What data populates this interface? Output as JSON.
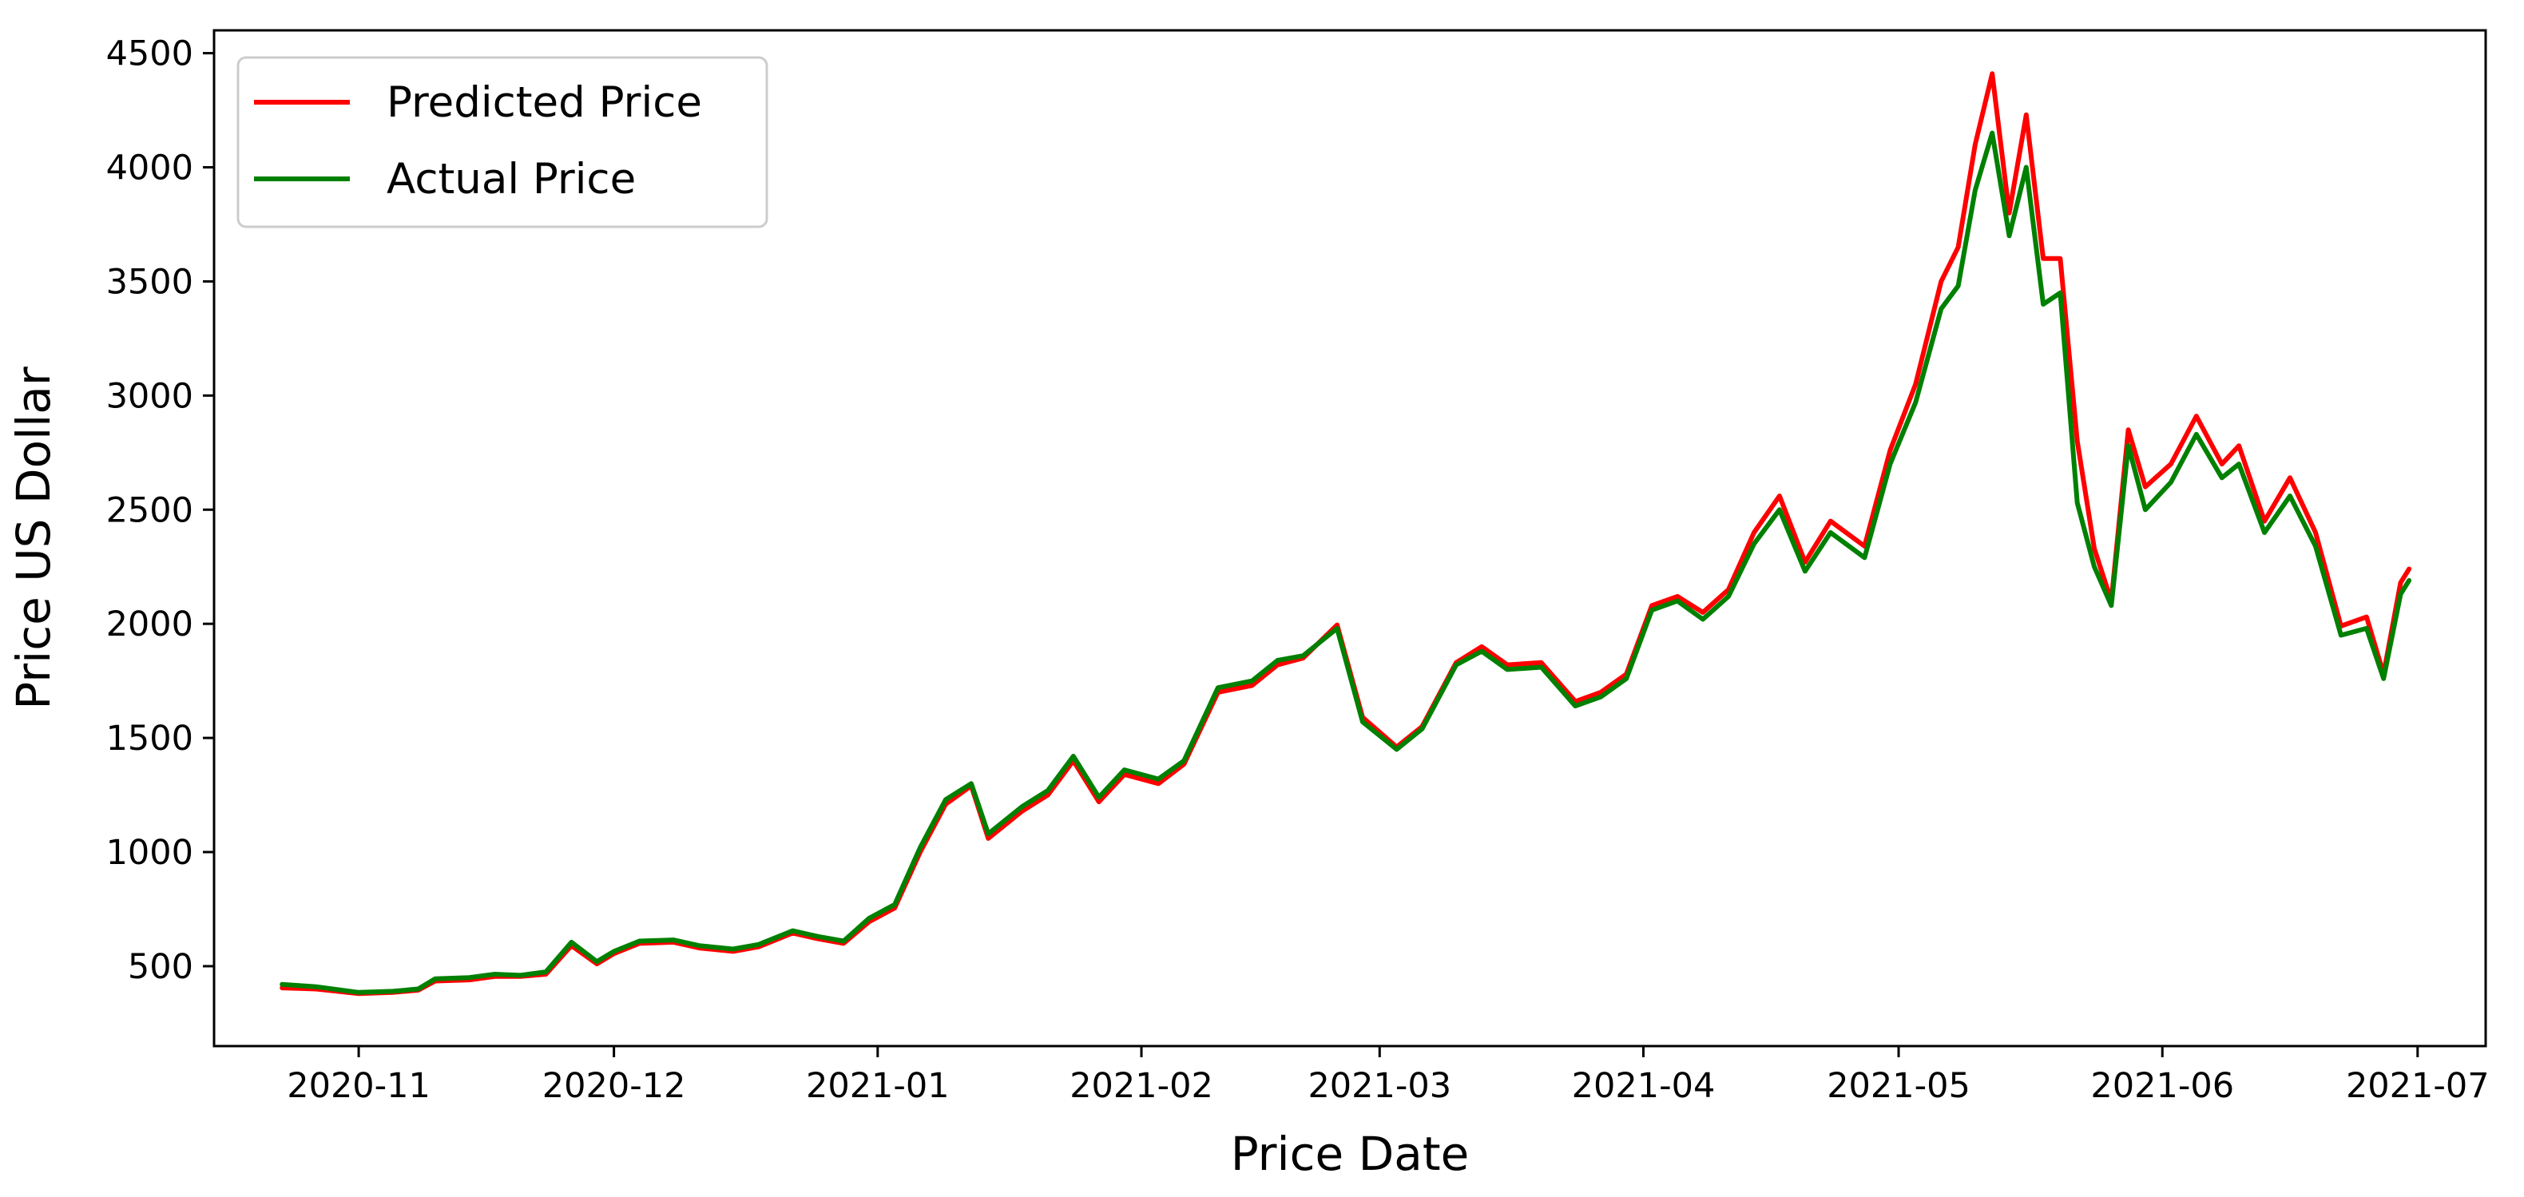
{
  "chart_data": {
    "type": "line",
    "xlabel": "Price Date",
    "ylabel": "Price US Dollar",
    "x_ticks": [
      "2020-11",
      "2020-12",
      "2021-01",
      "2021-02",
      "2021-03",
      "2021-04",
      "2021-05",
      "2021-06",
      "2021-07"
    ],
    "y_ticks": [
      "500",
      "1000",
      "1500",
      "2000",
      "2500",
      "3000",
      "3500",
      "4000",
      "4500"
    ],
    "xlim": [
      "2020-10-15",
      "2021-07-09"
    ],
    "ylim": [
      150,
      4600
    ],
    "grid": false,
    "legend_position": "top-left",
    "series": [
      {
        "name": "Predicted Price",
        "color": "#ff0000",
        "points": [
          [
            "2020-10-23",
            405
          ],
          [
            "2020-10-27",
            400
          ],
          [
            "2020-11-01",
            380
          ],
          [
            "2020-11-05",
            385
          ],
          [
            "2020-11-08",
            395
          ],
          [
            "2020-11-10",
            435
          ],
          [
            "2020-11-14",
            440
          ],
          [
            "2020-11-17",
            455
          ],
          [
            "2020-11-20",
            455
          ],
          [
            "2020-11-23",
            465
          ],
          [
            "2020-11-26",
            590
          ],
          [
            "2020-11-29",
            510
          ],
          [
            "2020-12-01",
            555
          ],
          [
            "2020-12-04",
            600
          ],
          [
            "2020-12-08",
            605
          ],
          [
            "2020-12-11",
            580
          ],
          [
            "2020-12-15",
            565
          ],
          [
            "2020-12-18",
            585
          ],
          [
            "2020-12-22",
            645
          ],
          [
            "2020-12-25",
            620
          ],
          [
            "2020-12-28",
            600
          ],
          [
            "2020-12-31",
            695
          ],
          [
            "2021-01-03",
            755
          ],
          [
            "2021-01-06",
            1000
          ],
          [
            "2021-01-09",
            1210
          ],
          [
            "2021-01-12",
            1290
          ],
          [
            "2021-01-14",
            1060
          ],
          [
            "2021-01-18",
            1180
          ],
          [
            "2021-01-21",
            1250
          ],
          [
            "2021-01-24",
            1400
          ],
          [
            "2021-01-27",
            1220
          ],
          [
            "2021-01-30",
            1340
          ],
          [
            "2021-02-03",
            1300
          ],
          [
            "2021-02-06",
            1385
          ],
          [
            "2021-02-10",
            1700
          ],
          [
            "2021-02-14",
            1730
          ],
          [
            "2021-02-17",
            1820
          ],
          [
            "2021-02-20",
            1850
          ],
          [
            "2021-02-24",
            1995
          ],
          [
            "2021-02-27",
            1590
          ],
          [
            "2021-03-03",
            1460
          ],
          [
            "2021-03-06",
            1550
          ],
          [
            "2021-03-10",
            1830
          ],
          [
            "2021-03-13",
            1900
          ],
          [
            "2021-03-16",
            1820
          ],
          [
            "2021-03-20",
            1830
          ],
          [
            "2021-03-24",
            1660
          ],
          [
            "2021-03-27",
            1700
          ],
          [
            "2021-03-30",
            1780
          ],
          [
            "2021-04-02",
            2080
          ],
          [
            "2021-04-05",
            2120
          ],
          [
            "2021-04-08",
            2050
          ],
          [
            "2021-04-11",
            2150
          ],
          [
            "2021-04-14",
            2400
          ],
          [
            "2021-04-17",
            2560
          ],
          [
            "2021-04-20",
            2270
          ],
          [
            "2021-04-23",
            2450
          ],
          [
            "2021-04-27",
            2340
          ],
          [
            "2021-04-30",
            2760
          ],
          [
            "2021-05-03",
            3050
          ],
          [
            "2021-05-06",
            3500
          ],
          [
            "2021-05-08",
            3650
          ],
          [
            "2021-05-10",
            4100
          ],
          [
            "2021-05-12",
            4410
          ],
          [
            "2021-05-14",
            3800
          ],
          [
            "2021-05-16",
            4230
          ],
          [
            "2021-05-18",
            3600
          ],
          [
            "2021-05-20",
            3600
          ],
          [
            "2021-05-22",
            2800
          ],
          [
            "2021-05-24",
            2330
          ],
          [
            "2021-05-26",
            2100
          ],
          [
            "2021-05-28",
            2850
          ],
          [
            "2021-05-30",
            2600
          ],
          [
            "2021-06-02",
            2700
          ],
          [
            "2021-06-05",
            2910
          ],
          [
            "2021-06-08",
            2700
          ],
          [
            "2021-06-10",
            2780
          ],
          [
            "2021-06-13",
            2450
          ],
          [
            "2021-06-16",
            2640
          ],
          [
            "2021-06-19",
            2400
          ],
          [
            "2021-06-22",
            1990
          ],
          [
            "2021-06-25",
            2030
          ],
          [
            "2021-06-27",
            1780
          ],
          [
            "2021-06-29",
            2180
          ],
          [
            "2021-06-30",
            2240
          ]
        ]
      },
      {
        "name": "Actual Price",
        "color": "#008000",
        "points": [
          [
            "2020-10-23",
            420
          ],
          [
            "2020-10-27",
            410
          ],
          [
            "2020-11-01",
            385
          ],
          [
            "2020-11-05",
            390
          ],
          [
            "2020-11-08",
            400
          ],
          [
            "2020-11-10",
            445
          ],
          [
            "2020-11-14",
            450
          ],
          [
            "2020-11-17",
            465
          ],
          [
            "2020-11-20",
            460
          ],
          [
            "2020-11-23",
            475
          ],
          [
            "2020-11-26",
            605
          ],
          [
            "2020-11-29",
            520
          ],
          [
            "2020-12-01",
            565
          ],
          [
            "2020-12-04",
            610
          ],
          [
            "2020-12-08",
            615
          ],
          [
            "2020-12-11",
            590
          ],
          [
            "2020-12-15",
            575
          ],
          [
            "2020-12-18",
            595
          ],
          [
            "2020-12-22",
            655
          ],
          [
            "2020-12-25",
            630
          ],
          [
            "2020-12-28",
            610
          ],
          [
            "2020-12-31",
            710
          ],
          [
            "2021-01-03",
            770
          ],
          [
            "2021-01-06",
            1020
          ],
          [
            "2021-01-09",
            1230
          ],
          [
            "2021-01-12",
            1300
          ],
          [
            "2021-01-14",
            1080
          ],
          [
            "2021-01-18",
            1200
          ],
          [
            "2021-01-21",
            1270
          ],
          [
            "2021-01-24",
            1420
          ],
          [
            "2021-01-27",
            1240
          ],
          [
            "2021-01-30",
            1360
          ],
          [
            "2021-02-03",
            1320
          ],
          [
            "2021-02-06",
            1400
          ],
          [
            "2021-02-10",
            1720
          ],
          [
            "2021-02-14",
            1750
          ],
          [
            "2021-02-17",
            1840
          ],
          [
            "2021-02-20",
            1860
          ],
          [
            "2021-02-24",
            1980
          ],
          [
            "2021-02-27",
            1570
          ],
          [
            "2021-03-03",
            1450
          ],
          [
            "2021-03-06",
            1540
          ],
          [
            "2021-03-10",
            1820
          ],
          [
            "2021-03-13",
            1880
          ],
          [
            "2021-03-16",
            1800
          ],
          [
            "2021-03-20",
            1810
          ],
          [
            "2021-03-24",
            1640
          ],
          [
            "2021-03-27",
            1680
          ],
          [
            "2021-03-30",
            1760
          ],
          [
            "2021-04-02",
            2060
          ],
          [
            "2021-04-05",
            2100
          ],
          [
            "2021-04-08",
            2020
          ],
          [
            "2021-04-11",
            2120
          ],
          [
            "2021-04-14",
            2350
          ],
          [
            "2021-04-17",
            2500
          ],
          [
            "2021-04-20",
            2230
          ],
          [
            "2021-04-23",
            2400
          ],
          [
            "2021-04-27",
            2290
          ],
          [
            "2021-04-30",
            2700
          ],
          [
            "2021-05-03",
            2970
          ],
          [
            "2021-05-06",
            3380
          ],
          [
            "2021-05-08",
            3480
          ],
          [
            "2021-05-10",
            3900
          ],
          [
            "2021-05-12",
            4150
          ],
          [
            "2021-05-14",
            3700
          ],
          [
            "2021-05-16",
            4000
          ],
          [
            "2021-05-18",
            3400
          ],
          [
            "2021-05-20",
            3450
          ],
          [
            "2021-05-22",
            2530
          ],
          [
            "2021-05-24",
            2250
          ],
          [
            "2021-05-26",
            2080
          ],
          [
            "2021-05-28",
            2780
          ],
          [
            "2021-05-30",
            2500
          ],
          [
            "2021-06-02",
            2620
          ],
          [
            "2021-06-05",
            2830
          ],
          [
            "2021-06-08",
            2640
          ],
          [
            "2021-06-10",
            2700
          ],
          [
            "2021-06-13",
            2400
          ],
          [
            "2021-06-16",
            2560
          ],
          [
            "2021-06-19",
            2340
          ],
          [
            "2021-06-22",
            1950
          ],
          [
            "2021-06-25",
            1980
          ],
          [
            "2021-06-27",
            1760
          ],
          [
            "2021-06-29",
            2130
          ],
          [
            "2021-06-30",
            2190
          ]
        ]
      }
    ]
  }
}
